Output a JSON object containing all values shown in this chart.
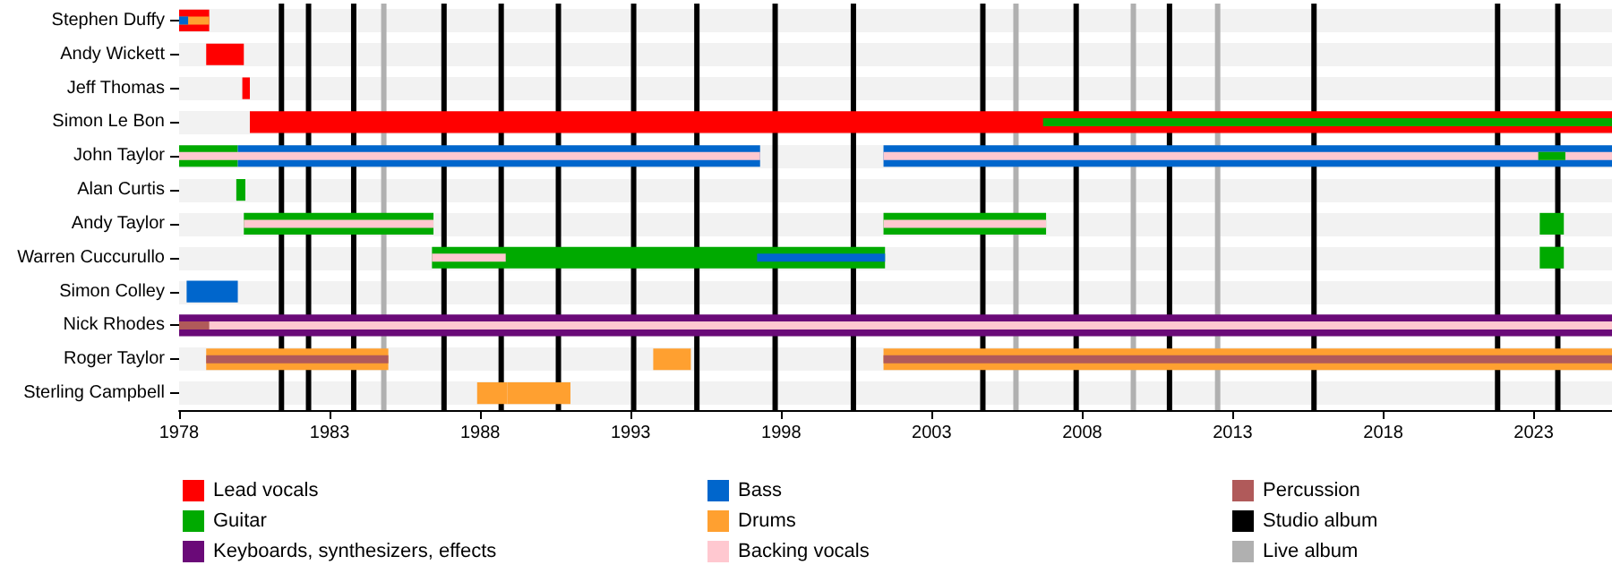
{
  "chart_data": {
    "type": "bar",
    "orientation": "horizontal",
    "categories": [
      "Stephen Duffy",
      "Andy Wickett",
      "Jeff Thomas",
      "Simon Le Bon",
      "John Taylor",
      "Alan Curtis",
      "Andy Taylor",
      "Warren Cuccurullo",
      "Simon Colley",
      "Nick Rhodes",
      "Roger Taylor",
      "Sterling Campbell"
    ],
    "series": [
      {
        "name": "Lead vocals",
        "color": "#ff0000",
        "base": [
          1978,
          1978.9,
          1980.1,
          1980.35,
          null,
          null,
          null,
          null,
          null,
          null,
          null,
          null
        ],
        "values": [
          1,
          1.25,
          0.25,
          45.25,
          null,
          null,
          null,
          null,
          null,
          null,
          null,
          null
        ]
      },
      {
        "name": "Guitar",
        "color": "#00aa00",
        "base": [
          null,
          null,
          null,
          null,
          1978,
          1979.9,
          1980.15,
          1986.4,
          null,
          null,
          null,
          null
        ],
        "values": [
          null,
          null,
          null,
          null,
          1.95,
          0.3,
          6.3,
          15.05,
          null,
          null,
          null,
          null
        ]
      },
      {
        "color": "#00aa00",
        "base": [
          null,
          null,
          null,
          null,
          null,
          null,
          2001.4,
          2023.2,
          null,
          null,
          null,
          null
        ],
        "values": [
          null,
          null,
          null,
          null,
          null,
          null,
          5.4,
          0.8,
          null,
          null,
          null,
          null
        ]
      },
      {
        "color": "#00aa00",
        "base": [
          null,
          null,
          null,
          null,
          null,
          null,
          2023.2,
          null,
          null,
          null,
          null,
          null
        ],
        "values": [
          null,
          null,
          null,
          null,
          null,
          null,
          0.8,
          null,
          null,
          null,
          null,
          null
        ]
      },
      {
        "name": "Keyboards, synthesizers, effects",
        "color": "#6a0a78",
        "base": [
          null,
          null,
          null,
          null,
          null,
          null,
          null,
          null,
          null,
          1978,
          null,
          null
        ],
        "values": [
          null,
          null,
          null,
          null,
          null,
          null,
          null,
          null,
          null,
          47.6,
          null,
          null
        ]
      },
      {
        "name": "Bass",
        "color": "#0066cc",
        "base": [
          null,
          null,
          null,
          null,
          1979.95,
          null,
          null,
          null,
          1978.25,
          null,
          null,
          null
        ],
        "values": [
          null,
          null,
          null,
          null,
          17.35,
          null,
          null,
          null,
          1.7,
          null,
          null,
          null
        ]
      },
      {
        "color": "#0066cc",
        "base": [
          null,
          null,
          null,
          null,
          2001.4,
          null,
          null,
          null,
          null,
          null,
          null,
          null
        ],
        "values": [
          null,
          null,
          null,
          null,
          24.2,
          null,
          null,
          null,
          null,
          null,
          null,
          null
        ]
      },
      {
        "name": "Drums",
        "color": "#ffa030",
        "base": [
          null,
          null,
          null,
          null,
          null,
          null,
          null,
          null,
          null,
          null,
          1978.9,
          1988.9
        ],
        "values": [
          null,
          null,
          null,
          null,
          null,
          null,
          null,
          null,
          null,
          null,
          6.05,
          2.1
        ]
      },
      {
        "color": "#ffa030",
        "base": [
          null,
          null,
          null,
          null,
          null,
          null,
          null,
          null,
          null,
          null,
          2001.4,
          1987.9
        ],
        "values": [
          null,
          null,
          null,
          null,
          null,
          null,
          null,
          null,
          null,
          null,
          24.2,
          1
        ]
      },
      {
        "color": "#ffa030",
        "base": [
          null,
          null,
          null,
          null,
          null,
          null,
          null,
          null,
          null,
          null,
          1993.75,
          null
        ],
        "values": [
          null,
          null,
          null,
          null,
          null,
          null,
          null,
          null,
          null,
          null,
          1.25,
          null
        ]
      },
      {
        "name": "Backing vocals",
        "color": "#ffc8d0",
        "base": [
          null,
          null,
          null,
          null,
          1978,
          null,
          1980.15,
          1986.4,
          null,
          1978,
          null,
          null
        ],
        "values": [
          null,
          null,
          null,
          null,
          19.3,
          null,
          6.3,
          2.45,
          null,
          47.6,
          null,
          null
        ]
      },
      {
        "color": "#ffc8d0",
        "base": [
          null,
          null,
          null,
          null,
          2001.4,
          null,
          2001.4,
          null,
          null,
          null,
          null,
          null
        ],
        "values": [
          null,
          null,
          null,
          null,
          24.2,
          null,
          5.4,
          null,
          null,
          null,
          null,
          null
        ]
      },
      {
        "name": "Percussion",
        "color": "#b05a5a",
        "base": [
          null,
          null,
          null,
          null,
          null,
          null,
          null,
          null,
          null,
          1978,
          1978.9,
          null
        ],
        "values": [
          null,
          null,
          null,
          null,
          null,
          null,
          null,
          null,
          null,
          1,
          6.05,
          null
        ]
      },
      {
        "color": "#b05a5a",
        "base": [
          null,
          null,
          null,
          null,
          null,
          null,
          null,
          null,
          null,
          null,
          2001.4,
          null
        ],
        "values": [
          null,
          null,
          null,
          null,
          null,
          null,
          null,
          null,
          null,
          null,
          24.2,
          null
        ]
      },
      {
        "color": "#00aa00",
        "base": [
          null,
          null,
          null,
          2006.7,
          2023.15,
          null,
          null,
          null,
          null,
          null,
          null,
          null
        ],
        "values": [
          null,
          null,
          null,
          18.9,
          0.9,
          null,
          null,
          null,
          null,
          null,
          null,
          null
        ]
      },
      {
        "color": "#ffa030",
        "base": [
          1978,
          null,
          null,
          null,
          null,
          null,
          null,
          null,
          null,
          null,
          null,
          null
        ],
        "values": [
          1,
          null,
          null,
          null,
          null,
          null,
          null,
          null,
          null,
          null,
          null,
          null
        ]
      },
      {
        "color": "#0066cc",
        "base": [
          1978,
          null,
          null,
          null,
          null,
          null,
          null,
          1997.2,
          null,
          null,
          null,
          null
        ],
        "values": [
          0.3,
          null,
          null,
          null,
          null,
          null,
          null,
          4.25,
          null,
          null,
          null,
          null
        ]
      }
    ],
    "xlim": [
      1978,
      2025.6
    ],
    "xticks": [
      1978,
      1983,
      1988,
      1993,
      1998,
      2003,
      2008,
      2013,
      2018,
      2023
    ],
    "ref_lines": [
      {
        "axis": "x",
        "value": 1981.4,
        "label": "Studio album",
        "color": "#000000"
      },
      {
        "axis": "x",
        "value": 1982.3,
        "color": "#000000"
      },
      {
        "axis": "x",
        "value": 1983.8,
        "color": "#000000"
      },
      {
        "axis": "x",
        "value": 1986.8,
        "color": "#000000"
      },
      {
        "axis": "x",
        "value": 1988.7,
        "color": "#000000"
      },
      {
        "axis": "x",
        "value": 1990.6,
        "color": "#000000"
      },
      {
        "axis": "x",
        "value": 1993.1,
        "color": "#000000"
      },
      {
        "axis": "x",
        "value": 1995.2,
        "color": "#000000"
      },
      {
        "axis": "x",
        "value": 1997.8,
        "color": "#000000"
      },
      {
        "axis": "x",
        "value": 2000.4,
        "color": "#000000"
      },
      {
        "axis": "x",
        "value": 2004.7,
        "color": "#000000"
      },
      {
        "axis": "x",
        "value": 2007.8,
        "color": "#000000"
      },
      {
        "axis": "x",
        "value": 2010.9,
        "color": "#000000"
      },
      {
        "axis": "x",
        "value": 2015.7,
        "color": "#000000"
      },
      {
        "axis": "x",
        "value": 2021.8,
        "color": "#000000"
      },
      {
        "axis": "x",
        "value": 2023.8,
        "color": "#000000"
      },
      {
        "axis": "x",
        "value": 1984.8,
        "label": "Live album",
        "color": "#b0b0b0"
      },
      {
        "axis": "x",
        "value": 2005.8,
        "color": "#b0b0b0"
      },
      {
        "axis": "x",
        "value": 2009.7,
        "color": "#b0b0b0"
      },
      {
        "axis": "x",
        "value": 2012.5,
        "color": "#b0b0b0"
      }
    ],
    "grid": "y",
    "legend": "bottom"
  }
}
